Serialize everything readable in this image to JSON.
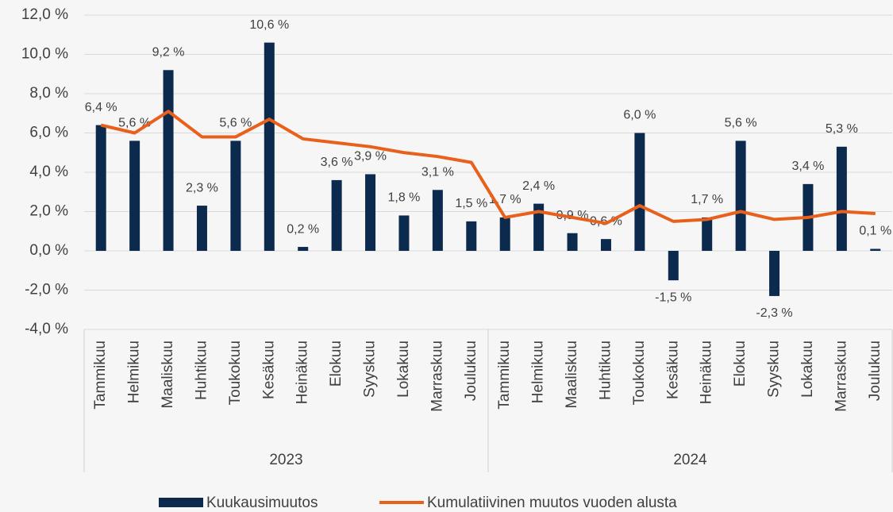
{
  "chart_data": {
    "type": "combo",
    "categories": [
      "Tammikuu",
      "Helmikuu",
      "Maaliskuu",
      "Huhtikuu",
      "Toukokuu",
      "Kesäkuu",
      "Heinäkuu",
      "Elokuu",
      "Syyskuu",
      "Lokakuu",
      "Marraskuu",
      "Joulukuu",
      "Tammikuu",
      "Helmikuu",
      "Maaliskuu",
      "Huhtikuu",
      "Toukokuu",
      "Kesäkuu",
      "Heinäkuu",
      "Elokuu",
      "Syyskuu",
      "Lokakuu",
      "Marraskuu",
      "Joulukuu"
    ],
    "groups": [
      "2023",
      "2024"
    ],
    "series": [
      {
        "name": "Kuukausimuutos",
        "type": "bar",
        "color": "#0c2a4e",
        "values": [
          6.4,
          5.6,
          9.2,
          2.3,
          5.6,
          10.6,
          0.2,
          3.6,
          3.9,
          1.8,
          3.1,
          1.5,
          1.7,
          2.4,
          0.9,
          0.6,
          6.0,
          -1.5,
          1.7,
          5.6,
          -2.3,
          3.4,
          5.3,
          0.1
        ],
        "value_labels": [
          "6,4 %",
          "5,6 %",
          "9,2 %",
          "2,3 %",
          "5,6 %",
          "10,6 %",
          "0,2 %",
          "3,6 %",
          "3,9 %",
          "1,8 %",
          "3,1 %",
          "1,5 %",
          "1,7 %",
          "2,4 %",
          "0,9 %",
          "0,6 %",
          "6,0 %",
          "-1,5 %",
          "1,7 %",
          "5,6 %",
          "-2,3 %",
          "3,4 %",
          "5,3 %",
          "0,1 %"
        ]
      },
      {
        "name": "Kumulatiivinen muutos vuoden alusta",
        "type": "line",
        "color": "#e8601c",
        "values": [
          6.4,
          6.0,
          7.1,
          5.8,
          5.8,
          6.7,
          5.7,
          5.5,
          5.3,
          5.0,
          4.8,
          4.5,
          1.7,
          2.0,
          1.7,
          1.4,
          2.3,
          1.5,
          1.6,
          2.0,
          1.6,
          1.7,
          2.0,
          1.9
        ]
      }
    ],
    "ylim": [
      -4,
      12
    ],
    "yticks": [
      {
        "value": -4,
        "label": "-4,0 %"
      },
      {
        "value": -2,
        "label": "-2,0 %"
      },
      {
        "value": 0,
        "label": "0,0 %"
      },
      {
        "value": 2,
        "label": "2,0 %"
      },
      {
        "value": 4,
        "label": "4,0 %"
      },
      {
        "value": 6,
        "label": "6,0 %"
      },
      {
        "value": 8,
        "label": "8,0 %"
      },
      {
        "value": 10,
        "label": "10,0 %"
      },
      {
        "value": 12,
        "label": "12,0 %"
      }
    ],
    "grid": true,
    "legend": "bottom"
  }
}
